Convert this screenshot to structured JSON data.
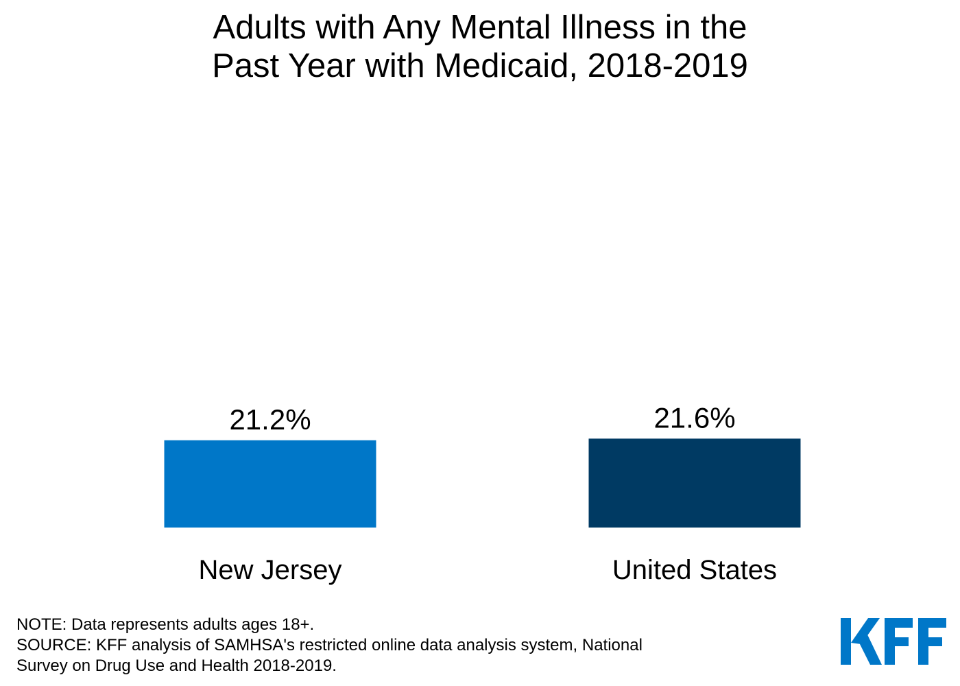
{
  "title_lines": [
    "Adults with Any Mental Illness in the",
    "Past Year with Medicaid, 2018-2019"
  ],
  "chart_data": {
    "type": "bar",
    "title": "Adults with Any Mental Illness in the Past Year with Medicaid, 2018-2019",
    "categories": [
      "New Jersey",
      "United States"
    ],
    "values": [
      21.2,
      21.6
    ],
    "value_labels": [
      "21.2%",
      "21.6%"
    ],
    "colors": [
      "#0077c8",
      "#003a63"
    ],
    "ylim": [
      0,
      100
    ],
    "grid": false,
    "legend": "none"
  },
  "footer": {
    "note": "NOTE: Data represents adults ages 18+.",
    "source_line1": "SOURCE: KFF analysis of SAMHSA's restricted online data analysis system, National",
    "source_line2": "Survey on Drug Use and Health 2018-2019."
  },
  "logo": {
    "text": "KFF",
    "color": "#0077c8"
  }
}
